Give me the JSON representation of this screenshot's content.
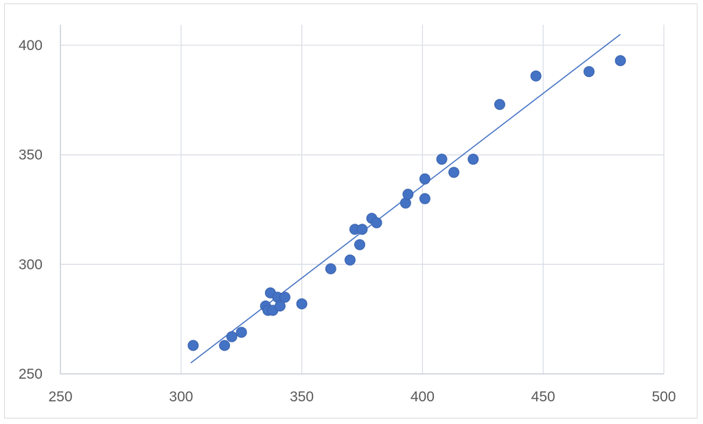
{
  "chart_data": {
    "type": "scatter",
    "title": "",
    "xlabel": "",
    "ylabel": "",
    "xlim": [
      250,
      500
    ],
    "ylim": [
      250,
      410
    ],
    "x_ticks": [
      250,
      300,
      350,
      400,
      450,
      500
    ],
    "y_ticks": [
      250,
      300,
      350,
      400
    ],
    "x_tick_labels": [
      "250",
      "300",
      "350",
      "400",
      "450",
      "500"
    ],
    "y_tick_labels": [
      "250",
      "300",
      "350",
      "400"
    ],
    "grid": "major",
    "legend": "none",
    "marker_color": "#4472c4",
    "trendline": {
      "type": "linear",
      "color": "#4472c4",
      "from": [
        304,
        255
      ],
      "to": [
        482,
        405
      ]
    },
    "series": [
      {
        "points": [
          [
            305,
            263
          ],
          [
            318,
            263
          ],
          [
            321,
            267
          ],
          [
            325,
            269
          ],
          [
            335,
            281
          ],
          [
            336,
            279
          ],
          [
            337,
            287
          ],
          [
            338,
            279
          ],
          [
            340,
            285
          ],
          [
            341,
            281
          ],
          [
            343,
            285
          ],
          [
            350,
            282
          ],
          [
            362,
            298
          ],
          [
            370,
            302
          ],
          [
            372,
            316
          ],
          [
            374,
            309
          ],
          [
            375,
            316
          ],
          [
            379,
            321
          ],
          [
            381,
            319
          ],
          [
            393,
            328
          ],
          [
            394,
            332
          ],
          [
            401,
            339
          ],
          [
            401,
            330
          ],
          [
            408,
            348
          ],
          [
            413,
            342
          ],
          [
            421,
            348
          ],
          [
            432,
            373
          ],
          [
            447,
            386
          ],
          [
            469,
            388
          ],
          [
            482,
            393
          ]
        ]
      }
    ]
  }
}
